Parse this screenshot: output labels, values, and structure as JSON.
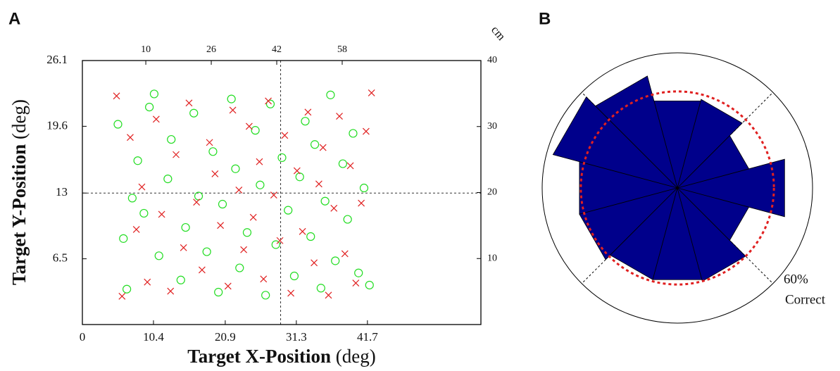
{
  "chart_data": [
    {
      "type": "scatter",
      "panel_label": "A",
      "xlabel": "Target X-Position",
      "xlabel_unit": "(deg)",
      "ylabel": "Target Y-Position",
      "ylabel_unit": "(deg)",
      "x2label": "cm",
      "xlim": [
        0,
        58.3
      ],
      "xticks": [
        0,
        10.4,
        20.9,
        31.3,
        41.7
      ],
      "ylim": [
        0,
        26.1
      ],
      "yticks": [
        6.5,
        13,
        19.6,
        26.1
      ],
      "x2lim": [
        -5.5,
        91.9
      ],
      "x2ticks": [
        10,
        26,
        42,
        58
      ],
      "y2lim": [
        0,
        40
      ],
      "y2ticks": [
        10,
        20,
        30,
        40
      ],
      "reference_lines": {
        "x": 29.0,
        "y": 13
      },
      "series": [
        {
          "marker": "circle",
          "color": "#22dd22",
          "x": [
            5.2,
            6.0,
            6.5,
            8.1,
            9.0,
            9.8,
            11.2,
            12.5,
            13.0,
            14.4,
            15.1,
            16.3,
            17.0,
            18.2,
            19.1,
            19.9,
            20.5,
            21.8,
            22.4,
            23.0,
            24.1,
            25.3,
            26.0,
            26.8,
            27.5,
            28.3,
            29.2,
            30.1,
            31.0,
            31.8,
            32.6,
            33.4,
            34.0,
            34.9,
            35.5,
            36.3,
            37.0,
            38.1,
            38.8,
            39.6,
            40.4,
            41.2,
            42.0,
            7.3,
            10.5
          ],
          "y": [
            19.8,
            8.5,
            3.5,
            16.2,
            11.0,
            21.5,
            6.8,
            14.4,
            18.3,
            4.4,
            9.6,
            20.9,
            12.7,
            7.2,
            17.1,
            3.2,
            11.9,
            22.3,
            15.4,
            5.6,
            9.1,
            19.2,
            13.8,
            2.9,
            21.8,
            7.9,
            16.5,
            11.3,
            4.8,
            14.6,
            20.1,
            8.7,
            17.8,
            3.6,
            12.2,
            22.7,
            6.3,
            15.9,
            10.4,
            18.9,
            5.1,
            13.5,
            3.9,
            12.5,
            22.8
          ]
        },
        {
          "marker": "x",
          "color": "#e02020",
          "x": [
            5.0,
            5.8,
            7.0,
            7.9,
            8.7,
            9.5,
            10.8,
            11.6,
            12.9,
            13.7,
            14.8,
            15.6,
            16.7,
            17.5,
            18.6,
            19.4,
            20.2,
            21.3,
            22.0,
            22.9,
            23.6,
            24.4,
            25.0,
            25.9,
            26.5,
            27.2,
            28.0,
            28.9,
            29.6,
            30.5,
            31.4,
            32.2,
            33.0,
            33.9,
            34.6,
            35.2,
            36.0,
            36.8,
            37.6,
            38.4,
            39.2,
            40.0,
            40.8,
            41.5,
            42.3
          ],
          "y": [
            22.6,
            2.8,
            18.5,
            9.4,
            13.6,
            4.2,
            20.3,
            10.9,
            3.3,
            16.8,
            7.6,
            21.9,
            12.1,
            5.4,
            18.0,
            14.9,
            9.8,
            3.8,
            21.2,
            13.3,
            7.4,
            19.6,
            10.6,
            16.1,
            4.5,
            22.1,
            12.8,
            8.3,
            18.7,
            3.1,
            15.2,
            9.2,
            21.0,
            6.1,
            13.9,
            17.5,
            2.9,
            11.5,
            20.6,
            7.0,
            15.7,
            4.1,
            12.0,
            19.1,
            22.9
          ]
        }
      ]
    },
    {
      "type": "polar_bar",
      "panel_label": "B",
      "theta": [
        0,
        30,
        60,
        90,
        120,
        150,
        180,
        210,
        240,
        270,
        300,
        330
      ],
      "values": [
        69,
        46,
        57,
        56,
        72,
        80,
        63,
        63,
        59,
        59,
        60,
        46
      ],
      "color": "#00008b",
      "rlim": [
        0,
        84
      ],
      "reference_circle": 60,
      "reference_color": "#e02020",
      "reference_label": "60%",
      "reference_note": "Correct"
    }
  ]
}
